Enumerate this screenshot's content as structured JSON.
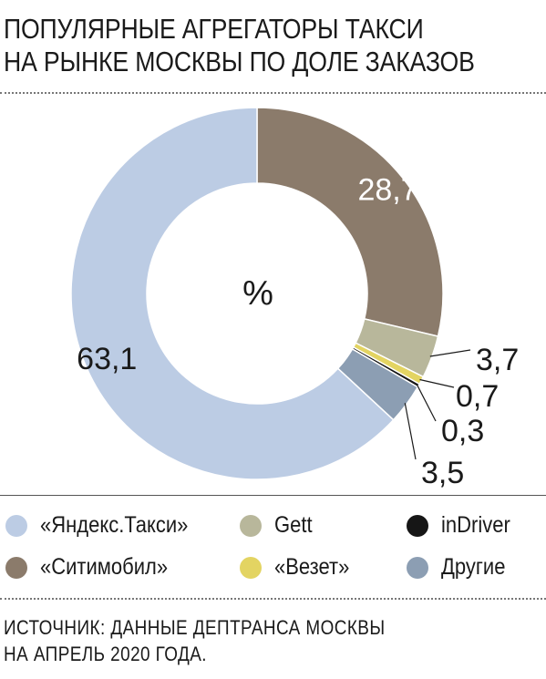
{
  "title_lines": [
    "ПОПУЛЯРНЫЕ АГРЕГАТОРЫ ТАКСИ",
    "НА РЫНКЕ МОСКВЫ ПО ДОЛЕ ЗАКАЗОВ"
  ],
  "center_label": "%",
  "chart_data": {
    "type": "pie",
    "title": "ПОПУЛЯРНЫЕ АГРЕГАТОРЫ ТАКСИ НА РЫНКЕ МОСКВЫ ПО ДОЛЕ ЗАКАЗОВ",
    "unit": "%",
    "categories": [
      "«Ситимобил»",
      "Gett",
      "«Везет»",
      "inDriver",
      "Другие",
      "«Яндекс.Такси»"
    ],
    "values": [
      28.7,
      3.7,
      0.7,
      0.3,
      3.5,
      63.1
    ],
    "value_labels": [
      "28,7",
      "3,7",
      "0,7",
      "0,3",
      "3,5",
      "63,1"
    ],
    "colors": [
      "#8b7b6b",
      "#b8b79b",
      "#e3d462",
      "#161616",
      "#8c9eb3",
      "#bccce4"
    ],
    "legend_position": "bottom"
  },
  "legend": [
    {
      "label": "«Яндекс.Такси»",
      "color": "#bccce4"
    },
    {
      "label": "Gett",
      "color": "#b8b79b"
    },
    {
      "label": "inDriver",
      "color": "#161616"
    },
    {
      "label": "«Ситимобил»",
      "color": "#8b7b6b"
    },
    {
      "label": "«Везет»",
      "color": "#e3d462"
    },
    {
      "label": "Другие",
      "color": "#8c9eb3"
    }
  ],
  "source_lines": [
    "ИСТОЧНИК: ДАННЫЕ ДЕПТРАНСА МОСКВЫ",
    "НА АПРЕЛЬ 2020 ГОДА."
  ]
}
